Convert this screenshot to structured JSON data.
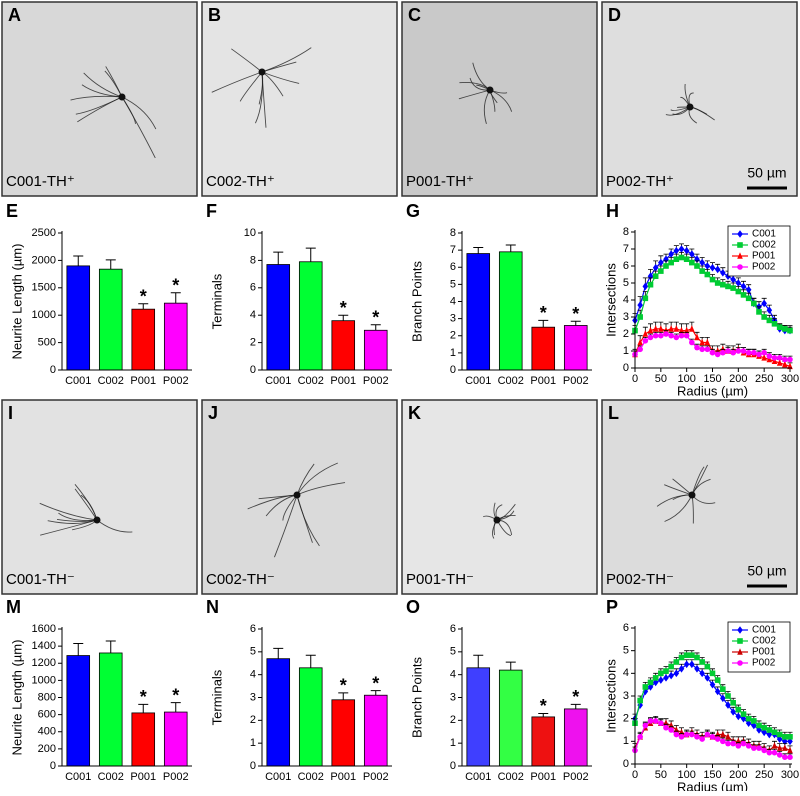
{
  "images": [
    {
      "letter": "A",
      "caption": "C001-TH⁺"
    },
    {
      "letter": "B",
      "caption": "C002-TH⁺"
    },
    {
      "letter": "C",
      "caption": "P001-TH⁺"
    },
    {
      "letter": "D",
      "caption": "P002-TH⁺",
      "scale_bar": "50 µm"
    },
    {
      "letter": "I",
      "caption": "C001-TH⁻"
    },
    {
      "letter": "J",
      "caption": "C002-TH⁻"
    },
    {
      "letter": "K",
      "caption": "P001-TH⁻"
    },
    {
      "letter": "L",
      "caption": "P002-TH⁻",
      "scale_bar": "50 µm"
    }
  ],
  "chart_data": [
    {
      "type": "bar",
      "label": "E",
      "ylabel": "Neurite Length (µm)",
      "categories": [
        "C001",
        "C002",
        "P001",
        "P002"
      ],
      "values": [
        1900,
        1840,
        1110,
        1220
      ],
      "errors": [
        180,
        170,
        100,
        190
      ],
      "significance": [
        null,
        null,
        "*",
        "*"
      ],
      "colors": [
        "#0000ff",
        "#00ff33",
        "#ff0000",
        "#ff00ff"
      ],
      "ylim": [
        0,
        2500
      ],
      "yticks": [
        0,
        500,
        1000,
        1500,
        2000,
        2500
      ]
    },
    {
      "type": "bar",
      "label": "F",
      "ylabel": "Terminals",
      "categories": [
        "C001",
        "C002",
        "P001",
        "P002"
      ],
      "values": [
        7.7,
        7.9,
        3.6,
        2.9
      ],
      "errors": [
        0.9,
        1.0,
        0.4,
        0.4
      ],
      "significance": [
        null,
        null,
        "*",
        "*"
      ],
      "colors": [
        "#0000ff",
        "#00ff33",
        "#ff0000",
        "#ff00ff"
      ],
      "ylim": [
        0,
        10
      ],
      "yticks": [
        0,
        2,
        4,
        6,
        8,
        10
      ]
    },
    {
      "type": "bar",
      "label": "G",
      "ylabel": "Branch Points",
      "categories": [
        "C001",
        "C002",
        "P001",
        "P002"
      ],
      "values": [
        6.8,
        6.9,
        2.5,
        2.6
      ],
      "errors": [
        0.35,
        0.4,
        0.4,
        0.25
      ],
      "significance": [
        null,
        null,
        "*",
        "*"
      ],
      "colors": [
        "#0000ff",
        "#00ff33",
        "#ff0000",
        "#ff00ff"
      ],
      "ylim": [
        0,
        8
      ],
      "yticks": [
        0,
        1,
        2,
        3,
        4,
        5,
        6,
        7,
        8
      ]
    },
    {
      "type": "line",
      "label": "H",
      "ylabel": "Intersections",
      "xlabel": "Radius (µm)",
      "legend": "upper right",
      "x": [
        0,
        10,
        20,
        30,
        40,
        50,
        60,
        70,
        80,
        90,
        100,
        110,
        120,
        130,
        140,
        150,
        160,
        170,
        180,
        190,
        200,
        210,
        220,
        230,
        240,
        250,
        260,
        270,
        280,
        290,
        300
      ],
      "xlim": [
        0,
        300
      ],
      "xticks": [
        0,
        50,
        100,
        150,
        200,
        250,
        300
      ],
      "ylim": [
        0,
        8
      ],
      "yticks": [
        0,
        1,
        2,
        3,
        4,
        5,
        6,
        7,
        8
      ],
      "series": [
        {
          "name": "C001",
          "color": "#0000ff",
          "marker": "diamond",
          "values": [
            2.8,
            3.7,
            4.8,
            5.4,
            5.9,
            6.2,
            6.4,
            6.7,
            6.9,
            7.0,
            6.9,
            6.7,
            6.4,
            6.2,
            6.0,
            5.9,
            5.8,
            5.6,
            5.4,
            5.2,
            5.0,
            4.8,
            4.6,
            3.8,
            3.6,
            3.8,
            3.4,
            2.8,
            2.3,
            2.2,
            2.2
          ],
          "errors": [
            0.4,
            0.5,
            0.5,
            0.4,
            0.4,
            0.4,
            0.3,
            0.3,
            0.3,
            0.3,
            0.3,
            0.3,
            0.3,
            0.3,
            0.3,
            0.3,
            0.3,
            0.3,
            0.3,
            0.3,
            0.3,
            0.3,
            0.3,
            0.3,
            0.3,
            0.3,
            0.3,
            0.3,
            0.3,
            0.3,
            0.3
          ]
        },
        {
          "name": "C002",
          "color": "#00cc33",
          "marker": "square",
          "values": [
            2.2,
            3.0,
            4.1,
            4.9,
            5.4,
            5.7,
            6.0,
            6.2,
            6.4,
            6.5,
            6.4,
            6.2,
            6.0,
            5.7,
            5.5,
            5.2,
            5.0,
            4.9,
            4.8,
            4.7,
            4.5,
            4.3,
            4.1,
            3.8,
            3.3,
            3.0,
            2.8,
            2.6,
            2.4,
            2.3,
            2.2
          ],
          "errors": [
            0.3,
            0.4,
            0.4,
            0.4,
            0.3,
            0.3,
            0.3,
            0.3,
            0.3,
            0.3,
            0.3,
            0.3,
            0.3,
            0.3,
            0.3,
            0.3,
            0.3,
            0.3,
            0.3,
            0.3,
            0.3,
            0.3,
            0.3,
            0.3,
            0.3,
            0.3,
            0.3,
            0.3,
            0.2,
            0.2,
            0.2
          ]
        },
        {
          "name": "P001",
          "color": "#ff0000",
          "marker": "triangle",
          "values": [
            0.8,
            1.5,
            2.0,
            2.2,
            2.3,
            2.3,
            2.2,
            2.3,
            2.3,
            2.2,
            2.2,
            2.3,
            1.8,
            1.5,
            1.5,
            1.0,
            1.0,
            1.1,
            1.0,
            1.0,
            1.1,
            0.9,
            0.8,
            0.8,
            0.7,
            0.6,
            0.5,
            0.4,
            0.3,
            0.2,
            0.1
          ],
          "errors": [
            0.3,
            0.4,
            0.4,
            0.4,
            0.4,
            0.4,
            0.4,
            0.4,
            0.4,
            0.4,
            0.4,
            0.4,
            0.3,
            0.3,
            0.3,
            0.3,
            0.3,
            0.3,
            0.3,
            0.3,
            0.3,
            0.3,
            0.3,
            0.3,
            0.3,
            0.3,
            0.2,
            0.2,
            0.2,
            0.2,
            0.2
          ]
        },
        {
          "name": "P002",
          "color": "#ff00ff",
          "marker": "circle",
          "values": [
            0.8,
            1.1,
            1.6,
            1.8,
            1.9,
            1.9,
            2.0,
            1.9,
            1.8,
            1.9,
            1.9,
            1.5,
            1.2,
            1.1,
            1.1,
            0.9,
            0.8,
            0.9,
            1.0,
            0.9,
            1.0,
            1.0,
            0.9,
            0.9,
            0.8,
            0.9,
            0.7,
            0.6,
            0.6,
            0.5,
            0.5
          ],
          "errors": [
            0.2,
            0.2,
            0.2,
            0.2,
            0.2,
            0.2,
            0.2,
            0.2,
            0.2,
            0.2,
            0.2,
            0.2,
            0.2,
            0.2,
            0.2,
            0.2,
            0.2,
            0.2,
            0.2,
            0.2,
            0.2,
            0.2,
            0.2,
            0.2,
            0.2,
            0.2,
            0.2,
            0.2,
            0.2,
            0.2,
            0.2
          ]
        }
      ]
    },
    {
      "type": "bar",
      "label": "M",
      "ylabel": "Neurite Length (µm)",
      "categories": [
        "C001",
        "C002",
        "P001",
        "P002"
      ],
      "values": [
        1290,
        1320,
        620,
        630
      ],
      "errors": [
        140,
        140,
        100,
        110
      ],
      "significance": [
        null,
        null,
        "*",
        "*"
      ],
      "colors": [
        "#0000ff",
        "#00ff33",
        "#ff0000",
        "#ff00ff"
      ],
      "ylim": [
        0,
        1600
      ],
      "yticks": [
        0,
        200,
        400,
        600,
        800,
        1000,
        1200,
        1400,
        1600
      ]
    },
    {
      "type": "bar",
      "label": "N",
      "ylabel": "Terminals",
      "categories": [
        "C001",
        "C002",
        "P001",
        "P002"
      ],
      "values": [
        4.7,
        4.3,
        2.9,
        3.1
      ],
      "errors": [
        0.45,
        0.55,
        0.3,
        0.2
      ],
      "significance": [
        null,
        null,
        "*",
        "*"
      ],
      "colors": [
        "#0000ff",
        "#00ff33",
        "#ff0000",
        "#ff00ff"
      ],
      "ylim": [
        0,
        6
      ],
      "yticks": [
        0,
        1,
        2,
        3,
        4,
        5,
        6
      ]
    },
    {
      "type": "bar",
      "label": "O",
      "ylabel": "Branch Points",
      "categories": [
        "C001",
        "C002",
        "P001",
        "P002"
      ],
      "values": [
        4.3,
        4.2,
        2.15,
        2.5
      ],
      "errors": [
        0.55,
        0.35,
        0.15,
        0.2
      ],
      "significance": [
        null,
        null,
        "*",
        "*"
      ],
      "colors": [
        "#3f3fff",
        "#33ff44",
        "#ee1111",
        "#ee11ee"
      ],
      "ylim": [
        0,
        6
      ],
      "yticks": [
        0,
        1,
        2,
        3,
        4,
        5,
        6
      ]
    },
    {
      "type": "line",
      "label": "P",
      "ylabel": "Intersections",
      "xlabel": "Radius (µm)",
      "legend": "upper right",
      "x": [
        0,
        10,
        20,
        30,
        40,
        50,
        60,
        70,
        80,
        90,
        100,
        110,
        120,
        130,
        140,
        150,
        160,
        170,
        180,
        190,
        200,
        210,
        220,
        230,
        240,
        250,
        260,
        270,
        280,
        290,
        300
      ],
      "xlim": [
        0,
        300
      ],
      "xticks": [
        0,
        50,
        100,
        150,
        200,
        250,
        300
      ],
      "ylim": [
        0,
        6
      ],
      "yticks": [
        0,
        1,
        2,
        3,
        4,
        5,
        6
      ],
      "series": [
        {
          "name": "C001",
          "color": "#0000ff",
          "marker": "diamond",
          "values": [
            2.0,
            2.6,
            3.2,
            3.4,
            3.6,
            3.7,
            3.8,
            3.9,
            4.0,
            4.2,
            4.4,
            4.4,
            4.2,
            4.0,
            3.8,
            3.5,
            3.2,
            2.9,
            2.6,
            2.3,
            2.1,
            2.0,
            1.8,
            1.7,
            1.5,
            1.4,
            1.3,
            1.3,
            1.1,
            1.0,
            1.0
          ],
          "errors": [
            0.2,
            0.2,
            0.2,
            0.2,
            0.2,
            0.2,
            0.2,
            0.2,
            0.2,
            0.2,
            0.2,
            0.2,
            0.2,
            0.2,
            0.2,
            0.2,
            0.2,
            0.2,
            0.2,
            0.2,
            0.2,
            0.2,
            0.2,
            0.2,
            0.2,
            0.2,
            0.2,
            0.2,
            0.2,
            0.2,
            0.2
          ]
        },
        {
          "name": "C002",
          "color": "#00cc33",
          "marker": "square",
          "values": [
            1.8,
            2.8,
            3.4,
            3.6,
            3.8,
            4.0,
            4.1,
            4.3,
            4.5,
            4.7,
            4.8,
            4.8,
            4.7,
            4.5,
            4.3,
            4.0,
            3.7,
            3.3,
            3.0,
            2.7,
            2.4,
            2.2,
            2.0,
            1.9,
            1.7,
            1.6,
            1.5,
            1.4,
            1.3,
            1.2,
            1.2
          ],
          "errors": [
            0.2,
            0.2,
            0.2,
            0.2,
            0.2,
            0.2,
            0.2,
            0.2,
            0.2,
            0.2,
            0.2,
            0.2,
            0.2,
            0.2,
            0.2,
            0.2,
            0.2,
            0.2,
            0.2,
            0.2,
            0.2,
            0.2,
            0.2,
            0.2,
            0.2,
            0.2,
            0.2,
            0.2,
            0.2,
            0.2,
            0.2
          ]
        },
        {
          "name": "P001",
          "color": "#cc0000",
          "marker": "triangle",
          "values": [
            0.7,
            1.2,
            1.6,
            1.8,
            1.9,
            1.8,
            1.8,
            1.7,
            1.5,
            1.4,
            1.3,
            1.4,
            1.3,
            1.2,
            1.3,
            1.2,
            1.3,
            1.3,
            1.2,
            1.0,
            1.0,
            1.0,
            0.9,
            0.8,
            0.8,
            0.7,
            0.6,
            0.8,
            0.7,
            0.7,
            0.6
          ],
          "errors": [
            0.2,
            0.2,
            0.2,
            0.2,
            0.2,
            0.2,
            0.2,
            0.2,
            0.2,
            0.2,
            0.2,
            0.2,
            0.2,
            0.2,
            0.2,
            0.2,
            0.2,
            0.2,
            0.2,
            0.2,
            0.2,
            0.2,
            0.2,
            0.2,
            0.2,
            0.2,
            0.2,
            0.2,
            0.2,
            0.2,
            0.2
          ]
        },
        {
          "name": "P002",
          "color": "#ff00ff",
          "marker": "circle",
          "values": [
            0.6,
            1.2,
            1.7,
            1.9,
            1.9,
            1.8,
            1.6,
            1.5,
            1.3,
            1.2,
            1.3,
            1.3,
            1.2,
            1.1,
            1.3,
            1.2,
            1.1,
            1.0,
            0.9,
            0.9,
            0.8,
            0.9,
            0.8,
            0.7,
            0.7,
            0.6,
            0.5,
            0.5,
            0.4,
            0.3,
            0.3
          ],
          "errors": [
            0.15,
            0.15,
            0.15,
            0.15,
            0.15,
            0.15,
            0.15,
            0.15,
            0.15,
            0.15,
            0.15,
            0.15,
            0.15,
            0.15,
            0.15,
            0.15,
            0.15,
            0.15,
            0.15,
            0.15,
            0.15,
            0.15,
            0.15,
            0.15,
            0.15,
            0.15,
            0.15,
            0.15,
            0.15,
            0.15,
            0.15
          ]
        }
      ]
    }
  ]
}
